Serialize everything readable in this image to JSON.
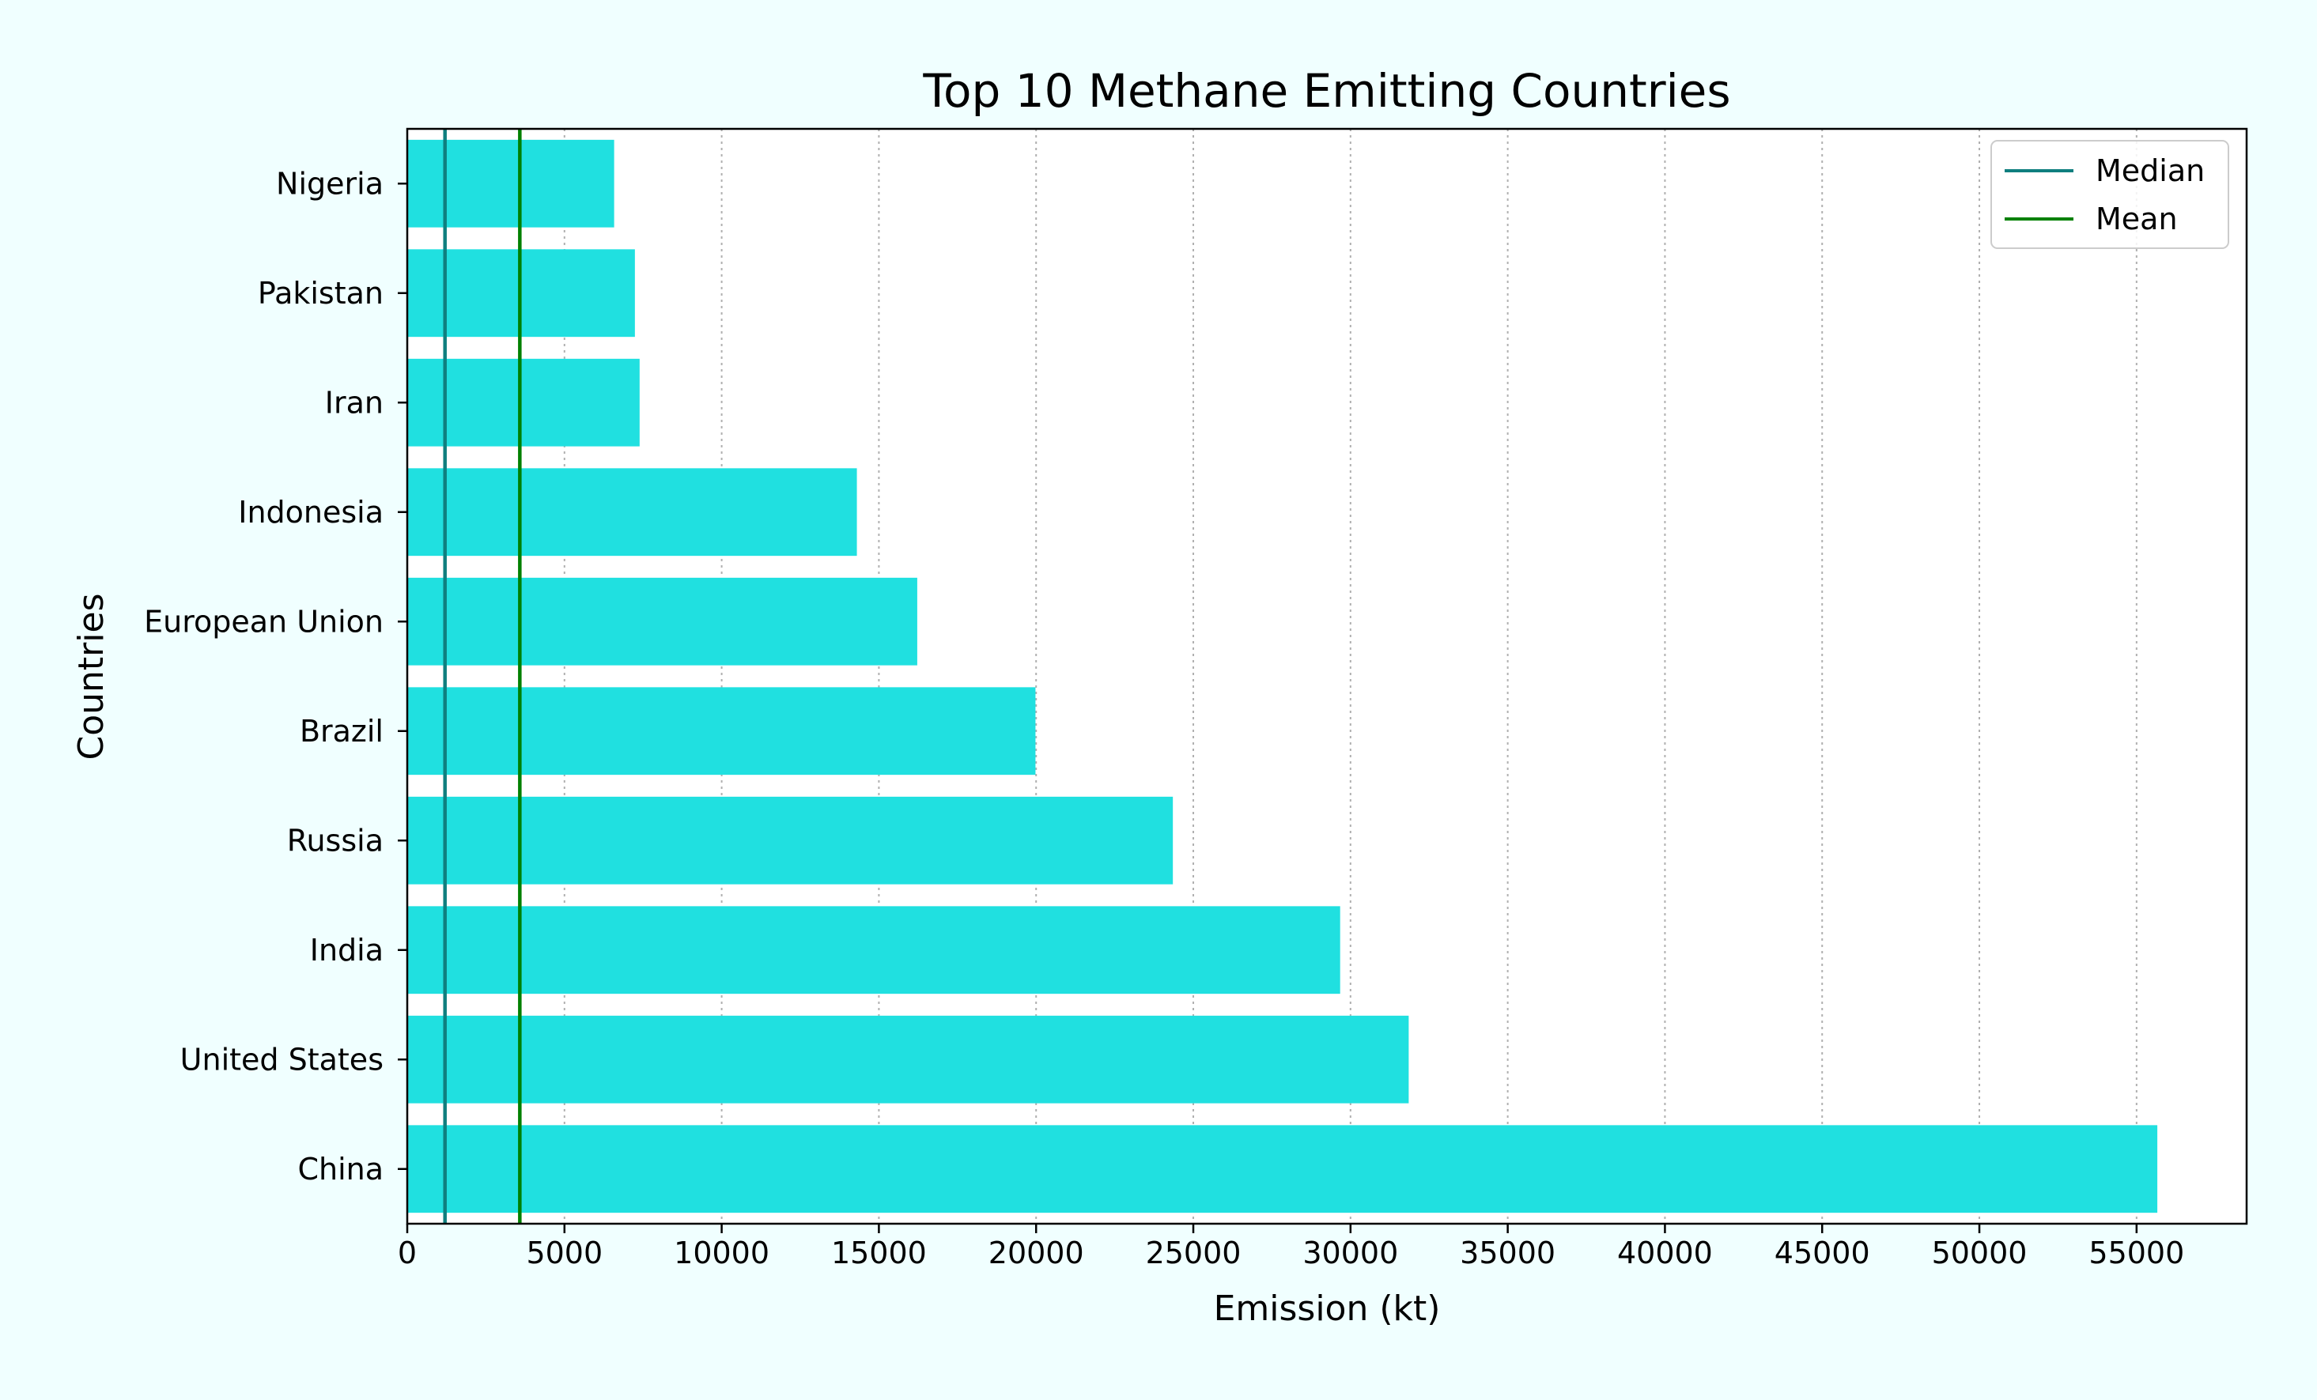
{
  "chart_data": {
    "type": "bar",
    "orientation": "horizontal",
    "title": "Top 10 Methane Emitting Countries",
    "xlabel": "Emission (kt)",
    "ylabel": "Countries",
    "categories": [
      "China",
      "United States",
      "India",
      "Russia",
      "Brazil",
      "European Union",
      "Indonesia",
      "Iran",
      "Pakistan",
      "Nigeria"
    ],
    "values": [
      55660,
      31850,
      29670,
      24350,
      19980,
      16220,
      14300,
      7390,
      7240,
      6580
    ],
    "xlim": [
      0,
      58500
    ],
    "xticks": [
      0,
      5000,
      10000,
      15000,
      20000,
      25000,
      30000,
      35000,
      40000,
      45000,
      50000,
      55000
    ],
    "bar_color": "#20e0e0",
    "grid": "x-dotted",
    "reference_lines": [
      {
        "name": "Median",
        "value": 1200,
        "color": "#0f7f7f"
      },
      {
        "name": "Mean",
        "value": 3580,
        "color": "#008000"
      }
    ],
    "legend": {
      "placement": "top-right",
      "entries": [
        "Median",
        "Mean"
      ]
    }
  }
}
